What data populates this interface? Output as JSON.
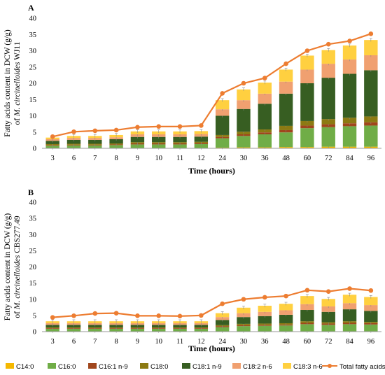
{
  "legend": [
    {
      "name": "C14:0",
      "color": "#F5B800"
    },
    {
      "name": "C16:0",
      "color": "#70AD47"
    },
    {
      "name": "C16:1 n-9",
      "color": "#A0461C"
    },
    {
      "name": "C18:0",
      "color": "#8C7A12"
    },
    {
      "name": "C18:1 n-9",
      "color": "#375E22"
    },
    {
      "name": "C18:2 n-6",
      "color": "#F0A070"
    },
    {
      "name": "C18:3 n-6",
      "color": "#FFD040"
    },
    {
      "name": "Total fatty acids",
      "color": "#ED7D31"
    }
  ],
  "chart_data": [
    {
      "type": "bar",
      "panel_label": "A",
      "stacked": true,
      "title": "",
      "xlabel": "Time (hours)",
      "ylabel_prefix": "Fatty acids content in DCW (g/g)",
      "ylabel_of": "of",
      "ylabel_species": "M. circinelloides",
      "ylabel_strain": "WJ11",
      "ylim": [
        0,
        40
      ],
      "yticks": [
        0,
        5,
        10,
        15,
        20,
        25,
        30,
        35,
        40
      ],
      "grid": false,
      "legend_position": "bottom",
      "categories": [
        "3",
        "6",
        "7",
        "8",
        "9",
        "10",
        "11",
        "12",
        "24",
        "30",
        "36",
        "48",
        "60",
        "72",
        "84",
        "96"
      ],
      "series": [
        {
          "name": "C14:0",
          "values": [
            0.1,
            0.1,
            0.1,
            0.1,
            0.1,
            0.1,
            0.1,
            0.1,
            0.2,
            0.3,
            0.3,
            0.4,
            0.4,
            0.5,
            0.5,
            0.5
          ]
        },
        {
          "name": "C16:0",
          "values": [
            0.7,
            0.8,
            0.8,
            0.9,
            1.1,
            1.1,
            1.1,
            1.2,
            2.9,
            3.5,
            4.0,
            4.5,
            5.8,
            6.0,
            6.3,
            6.5
          ]
        },
        {
          "name": "C16:1 n-9",
          "values": [
            0.2,
            0.2,
            0.2,
            0.2,
            0.3,
            0.3,
            0.3,
            0.3,
            0.4,
            0.5,
            0.6,
            0.7,
            0.8,
            0.9,
            0.9,
            1.0
          ]
        },
        {
          "name": "C18:0",
          "values": [
            0.3,
            0.3,
            0.3,
            0.3,
            0.4,
            0.4,
            0.4,
            0.4,
            0.6,
            0.8,
            0.9,
            1.3,
            1.4,
            1.6,
            1.7,
            1.8
          ]
        },
        {
          "name": "C18:1 n-9",
          "values": [
            1.0,
            1.2,
            1.2,
            1.3,
            1.6,
            1.6,
            1.6,
            1.6,
            5.9,
            7.0,
            7.9,
            9.9,
            11.6,
            12.7,
            13.5,
            14.2
          ]
        },
        {
          "name": "C18:2 n-6",
          "values": [
            0.5,
            0.6,
            0.6,
            0.6,
            0.8,
            0.8,
            0.8,
            0.8,
            2.0,
            2.7,
            3.1,
            3.7,
            4.2,
            4.3,
            4.4,
            4.6
          ]
        },
        {
          "name": "C18:3 n-6",
          "values": [
            0.5,
            0.6,
            0.6,
            0.7,
            0.9,
            0.9,
            0.9,
            0.9,
            2.8,
            3.3,
            3.4,
            3.7,
            4.3,
            4.2,
            4.3,
            4.7
          ]
        }
      ],
      "line": {
        "name": "Total fatty acids",
        "values": [
          3.6,
          5.1,
          5.4,
          5.6,
          6.5,
          6.7,
          6.7,
          7.0,
          16.9,
          20.0,
          21.6,
          26.0,
          30.0,
          32.0,
          33.0,
          35.2
        ]
      }
    },
    {
      "type": "bar",
      "panel_label": "B",
      "stacked": true,
      "title": "",
      "xlabel": "Time (hours)",
      "ylabel_prefix": "Fatty acids content in DCW (g/g)",
      "ylabel_of": "of",
      "ylabel_species": "M. circinelloides",
      "ylabel_strain": "CBS277.49",
      "ylim": [
        0,
        40
      ],
      "yticks": [
        0,
        5,
        10,
        15,
        20,
        25,
        30,
        35,
        40
      ],
      "grid": false,
      "legend_position": "bottom",
      "categories": [
        "3",
        "6",
        "7",
        "8",
        "9",
        "10",
        "11",
        "12",
        "24",
        "30",
        "36",
        "48",
        "60",
        "72",
        "84",
        "96"
      ],
      "series": [
        {
          "name": "C14:0",
          "values": [
            0.1,
            0.1,
            0.1,
            0.1,
            0.1,
            0.1,
            0.1,
            0.1,
            0.1,
            0.1,
            0.1,
            0.1,
            0.1,
            0.1,
            0.1,
            0.1
          ]
        },
        {
          "name": "C16:0",
          "values": [
            0.8,
            0.8,
            0.8,
            0.8,
            0.8,
            0.8,
            0.8,
            0.8,
            1.3,
            1.6,
            1.7,
            1.8,
            2.2,
            2.0,
            2.2,
            2.1
          ]
        },
        {
          "name": "C16:1 n-9",
          "values": [
            0.2,
            0.2,
            0.2,
            0.2,
            0.2,
            0.2,
            0.2,
            0.2,
            0.3,
            0.3,
            0.3,
            0.3,
            0.4,
            0.4,
            0.4,
            0.4
          ]
        },
        {
          "name": "C18:0",
          "values": [
            0.2,
            0.2,
            0.2,
            0.2,
            0.2,
            0.2,
            0.2,
            0.2,
            0.3,
            0.4,
            0.4,
            0.4,
            0.5,
            0.4,
            0.5,
            0.4
          ]
        },
        {
          "name": "C18:1 n-9",
          "values": [
            0.8,
            0.8,
            0.8,
            0.8,
            0.8,
            0.8,
            0.8,
            0.8,
            1.6,
            2.1,
            2.3,
            2.6,
            3.5,
            3.2,
            3.7,
            3.4
          ]
        },
        {
          "name": "C18:2 n-6",
          "values": [
            0.5,
            0.5,
            0.5,
            0.5,
            0.5,
            0.5,
            0.5,
            0.5,
            0.9,
            1.2,
            1.3,
            1.4,
            1.8,
            1.7,
            1.9,
            1.8
          ]
        },
        {
          "name": "C18:3 n-6",
          "values": [
            0.6,
            0.6,
            0.6,
            0.6,
            0.6,
            0.6,
            0.6,
            0.6,
            1.2,
            1.7,
            1.9,
            2.0,
            2.5,
            2.3,
            2.6,
            2.5
          ]
        }
      ],
      "line": {
        "name": "Total fatty acids",
        "values": [
          4.4,
          4.9,
          5.6,
          5.7,
          4.9,
          4.9,
          4.8,
          5.0,
          8.6,
          10.0,
          10.6,
          11.0,
          12.8,
          12.4,
          13.3,
          12.7
        ]
      }
    }
  ]
}
